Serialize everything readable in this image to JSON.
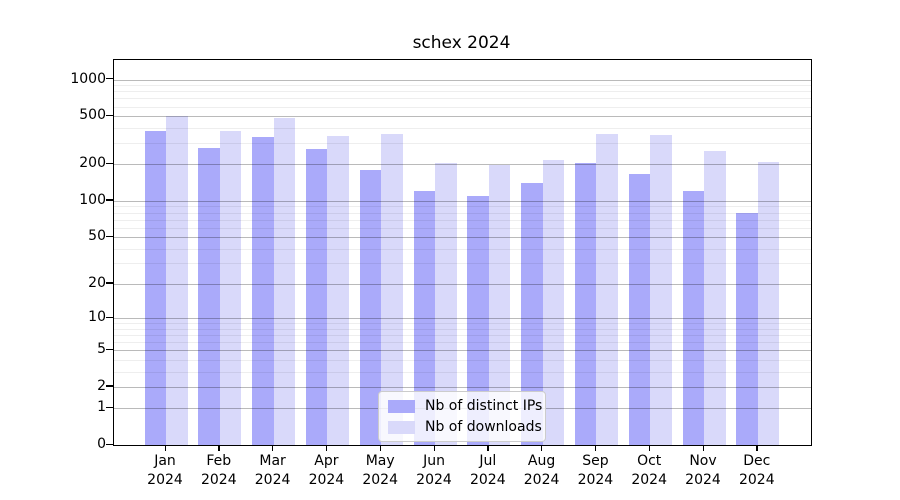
{
  "title": "schex 2024",
  "legend": {
    "items": [
      {
        "label": "Nb of distinct IPs",
        "color": "#aaaafa"
      },
      {
        "label": "Nb of downloads",
        "color": "#d9d9fa"
      }
    ]
  },
  "y_axis": {
    "tick_labels": [
      "0",
      "1",
      "2",
      "5",
      "10",
      "20",
      "50",
      "100",
      "200",
      "500",
      "1000"
    ]
  },
  "x_axis": {
    "tick_labels": [
      "Jan 2024",
      "Feb 2024",
      "Mar 2024",
      "Apr 2024",
      "May 2024",
      "Jun 2024",
      "Jul 2024",
      "Aug 2024",
      "Sep 2024",
      "Oct 2024",
      "Nov 2024",
      "Dec 2024"
    ]
  },
  "chart_data": {
    "type": "bar",
    "title": "schex 2024",
    "categories": [
      "Jan 2024",
      "Feb 2024",
      "Mar 2024",
      "Apr 2024",
      "May 2024",
      "Jun 2024",
      "Jul 2024",
      "Aug 2024",
      "Sep 2024",
      "Oct 2024",
      "Nov 2024",
      "Dec 2024"
    ],
    "series": [
      {
        "name": "Nb of distinct IPs",
        "color": "#aaaafa",
        "values": [
          380,
          275,
          340,
          268,
          180,
          120,
          110,
          140,
          207,
          168,
          120,
          80
        ]
      },
      {
        "name": "Nb of downloads",
        "color": "#d9d9fa",
        "values": [
          505,
          380,
          480,
          345,
          356,
          204,
          198,
          218,
          355,
          350,
          260,
          210
        ]
      }
    ],
    "xlabel": "",
    "ylabel": "",
    "ylim": [
      0,
      1000
    ],
    "yscale": "log10(value+1)",
    "y_ticks": [
      0,
      1,
      2,
      5,
      10,
      20,
      50,
      100,
      200,
      500,
      1000
    ],
    "y_minor_ticks": [
      3,
      4,
      6,
      7,
      8,
      9,
      30,
      40,
      60,
      70,
      80,
      90,
      300,
      400,
      600,
      700,
      800,
      900
    ],
    "grid": true,
    "gridlines_over_bars": true,
    "legend_position": "lower center"
  }
}
